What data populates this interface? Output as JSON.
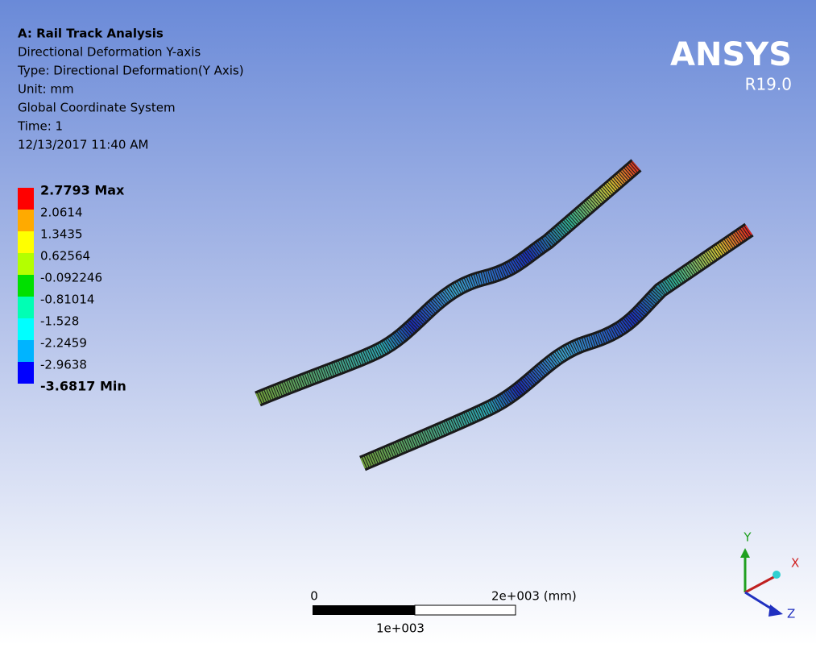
{
  "header": {
    "title": "A: Rail  Track Analysis",
    "lines": [
      "Directional Deformation Y-axis",
      "Type: Directional Deformation(Y Axis)",
      "Unit: mm",
      "Global Coordinate System",
      "Time: 1",
      "12/13/2017 11:40 AM"
    ]
  },
  "legend": {
    "entries": [
      "2.7793 Max",
      "2.0614",
      "1.3435",
      "0.62564",
      "-0.092246",
      "-0.81014",
      "-1.528",
      "-2.2459",
      "-2.9638",
      "-3.6817 Min"
    ]
  },
  "logo": {
    "name": "ANSYS",
    "version": "R19.0"
  },
  "scale_bar": {
    "start": "0",
    "end": "2e+003 (mm)",
    "mid": "1e+003"
  },
  "triad": {
    "y": "Y",
    "x": "X",
    "z": "Z"
  }
}
